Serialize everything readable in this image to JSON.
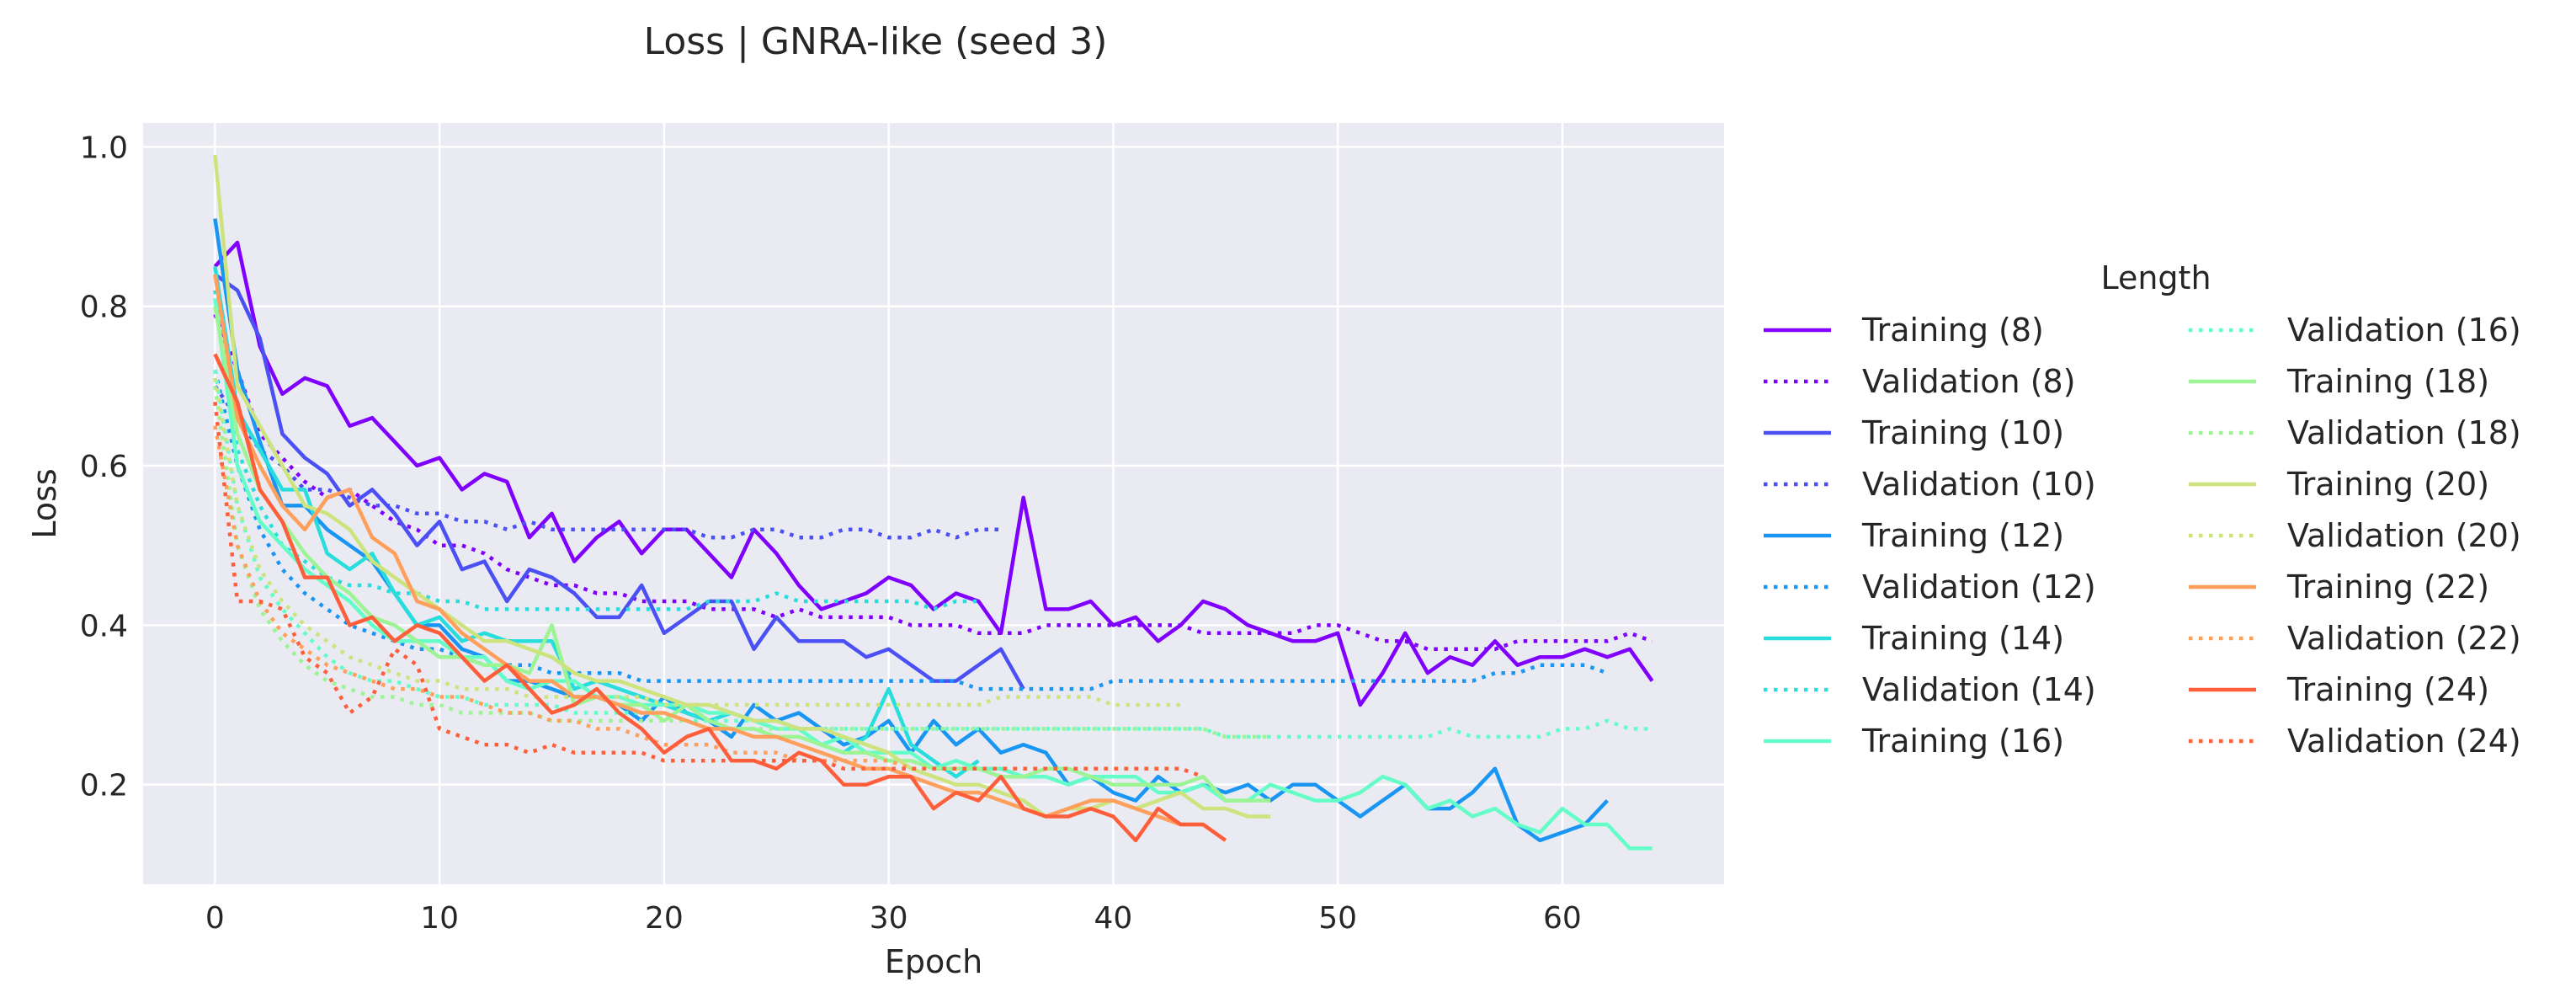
{
  "chart_data": {
    "type": "line",
    "title": "Loss | GNRA-like (seed 3)",
    "xlabel": "Epoch",
    "ylabel": "Loss",
    "xlim": [
      -3.2,
      67.2
    ],
    "ylim": [
      0.075,
      1.03
    ],
    "xticks": [
      0,
      10,
      20,
      30,
      40,
      50,
      60
    ],
    "yticks": [
      0.2,
      0.4,
      0.6,
      0.8,
      1.0
    ],
    "xtick_labels": [
      "0",
      "10",
      "20",
      "30",
      "40",
      "50",
      "60"
    ],
    "ytick_labels": [
      "0.2",
      "0.4",
      "0.6",
      "0.8",
      "1.0"
    ],
    "grid": true,
    "legend": {
      "title": "Length",
      "placement": "right",
      "columns": 2
    },
    "series": [
      {
        "name": "Training (8)",
        "color": "#8000ff",
        "style": "solid",
        "values": [
          0.85,
          0.88,
          0.75,
          0.69,
          0.71,
          0.7,
          0.65,
          0.66,
          0.63,
          0.6,
          0.61,
          0.57,
          0.59,
          0.58,
          0.51,
          0.54,
          0.48,
          0.51,
          0.53,
          0.49,
          0.52,
          0.52,
          0.49,
          0.46,
          0.52,
          0.49,
          0.45,
          0.42,
          0.43,
          0.44,
          0.46,
          0.45,
          0.42,
          0.44,
          0.43,
          0.39,
          0.56,
          0.42,
          0.42,
          0.43,
          0.4,
          0.41,
          0.38,
          0.4,
          0.43,
          0.42,
          0.4,
          0.39,
          0.38,
          0.38,
          0.39,
          0.3,
          0.34,
          0.39,
          0.34,
          0.36,
          0.35,
          0.38,
          0.35,
          0.36,
          0.36,
          0.37,
          0.36,
          0.37,
          0.33
        ]
      },
      {
        "name": "Validation (8)",
        "color": "#8000ff",
        "style": "dotted",
        "values": [
          0.79,
          0.72,
          0.64,
          0.61,
          0.58,
          0.56,
          0.57,
          0.55,
          0.53,
          0.52,
          0.5,
          0.5,
          0.49,
          0.47,
          0.46,
          0.45,
          0.45,
          0.44,
          0.44,
          0.43,
          0.43,
          0.43,
          0.42,
          0.42,
          0.42,
          0.41,
          0.42,
          0.41,
          0.41,
          0.41,
          0.41,
          0.4,
          0.4,
          0.4,
          0.39,
          0.39,
          0.39,
          0.4,
          0.4,
          0.4,
          0.4,
          0.4,
          0.4,
          0.4,
          0.39,
          0.39,
          0.39,
          0.39,
          0.39,
          0.4,
          0.4,
          0.39,
          0.38,
          0.38,
          0.37,
          0.37,
          0.37,
          0.37,
          0.38,
          0.38,
          0.38,
          0.38,
          0.38,
          0.39,
          0.38
        ]
      },
      {
        "name": "Training (10)",
        "color": "#4b50f5",
        "style": "solid",
        "values": [
          0.84,
          0.82,
          0.76,
          0.64,
          0.61,
          0.59,
          0.55,
          0.57,
          0.54,
          0.5,
          0.53,
          0.47,
          0.48,
          0.43,
          0.47,
          0.46,
          0.44,
          0.41,
          0.41,
          0.45,
          0.39,
          0.41,
          0.43,
          0.43,
          0.37,
          0.41,
          0.38,
          0.38,
          0.38,
          0.36,
          0.37,
          0.35,
          0.33,
          0.33,
          0.35,
          0.37,
          0.32
        ]
      },
      {
        "name": "Validation (10)",
        "color": "#4b50f5",
        "style": "dotted",
        "values": [
          0.7,
          0.66,
          0.62,
          0.6,
          0.57,
          0.57,
          0.56,
          0.55,
          0.55,
          0.54,
          0.54,
          0.53,
          0.53,
          0.52,
          0.53,
          0.52,
          0.52,
          0.52,
          0.52,
          0.52,
          0.52,
          0.52,
          0.51,
          0.51,
          0.52,
          0.52,
          0.51,
          0.51,
          0.52,
          0.52,
          0.51,
          0.51,
          0.52,
          0.51,
          0.52,
          0.52
        ]
      },
      {
        "name": "Training (12)",
        "color": "#1996f3",
        "style": "solid",
        "values": [
          0.91,
          0.72,
          0.63,
          0.55,
          0.55,
          0.52,
          0.5,
          0.48,
          0.44,
          0.4,
          0.4,
          0.37,
          0.36,
          0.33,
          0.33,
          0.32,
          0.31,
          0.31,
          0.3,
          0.28,
          0.31,
          0.29,
          0.28,
          0.26,
          0.3,
          0.28,
          0.29,
          0.27,
          0.25,
          0.26,
          0.28,
          0.24,
          0.28,
          0.25,
          0.27,
          0.24,
          0.25,
          0.24,
          0.2,
          0.21,
          0.19,
          0.18,
          0.21,
          0.19,
          0.2,
          0.19,
          0.2,
          0.18,
          0.2,
          0.2,
          0.18,
          0.16,
          0.18,
          0.2,
          0.17,
          0.17,
          0.19,
          0.22,
          0.15,
          0.13,
          0.14,
          0.15,
          0.18
        ]
      },
      {
        "name": "Validation (12)",
        "color": "#1996f3",
        "style": "dotted",
        "values": [
          0.72,
          0.6,
          0.52,
          0.47,
          0.44,
          0.42,
          0.4,
          0.39,
          0.38,
          0.37,
          0.37,
          0.36,
          0.35,
          0.35,
          0.35,
          0.34,
          0.34,
          0.34,
          0.34,
          0.33,
          0.33,
          0.33,
          0.33,
          0.33,
          0.33,
          0.33,
          0.33,
          0.33,
          0.33,
          0.33,
          0.33,
          0.33,
          0.33,
          0.33,
          0.32,
          0.32,
          0.32,
          0.32,
          0.32,
          0.32,
          0.33,
          0.33,
          0.33,
          0.33,
          0.33,
          0.33,
          0.33,
          0.33,
          0.33,
          0.33,
          0.33,
          0.33,
          0.33,
          0.33,
          0.33,
          0.33,
          0.33,
          0.34,
          0.34,
          0.35,
          0.35,
          0.35,
          0.34
        ]
      },
      {
        "name": "Training (14)",
        "color": "#2adddd",
        "style": "solid",
        "values": [
          0.85,
          0.67,
          0.62,
          0.57,
          0.57,
          0.49,
          0.47,
          0.49,
          0.44,
          0.4,
          0.41,
          0.38,
          0.39,
          0.38,
          0.38,
          0.38,
          0.32,
          0.33,
          0.32,
          0.31,
          0.3,
          0.29,
          0.28,
          0.29,
          0.28,
          0.28,
          0.27,
          0.25,
          0.24,
          0.26,
          0.32,
          0.25,
          0.23,
          0.21,
          0.23
        ]
      },
      {
        "name": "Validation (14)",
        "color": "#2adddd",
        "style": "dotted",
        "values": [
          0.82,
          0.62,
          0.55,
          0.5,
          0.48,
          0.46,
          0.45,
          0.45,
          0.44,
          0.44,
          0.43,
          0.43,
          0.42,
          0.42,
          0.42,
          0.42,
          0.42,
          0.42,
          0.42,
          0.42,
          0.42,
          0.42,
          0.43,
          0.43,
          0.43,
          0.44,
          0.43,
          0.43,
          0.43,
          0.43,
          0.43,
          0.43,
          0.42,
          0.43,
          0.43
        ]
      },
      {
        "name": "Training (16)",
        "color": "#64fdc7",
        "style": "solid",
        "values": [
          0.81,
          0.6,
          0.53,
          0.5,
          0.47,
          0.45,
          0.43,
          0.4,
          0.38,
          0.38,
          0.38,
          0.36,
          0.36,
          0.33,
          0.32,
          0.33,
          0.33,
          0.31,
          0.31,
          0.3,
          0.3,
          0.3,
          0.29,
          0.29,
          0.28,
          0.27,
          0.27,
          0.25,
          0.26,
          0.24,
          0.24,
          0.24,
          0.22,
          0.23,
          0.22,
          0.22,
          0.21,
          0.21,
          0.2,
          0.21,
          0.21,
          0.21,
          0.19,
          0.19,
          0.2,
          0.18,
          0.18,
          0.2,
          0.19,
          0.18,
          0.18,
          0.19,
          0.21,
          0.2,
          0.17,
          0.18,
          0.16,
          0.17,
          0.15,
          0.14,
          0.17,
          0.15,
          0.15,
          0.12,
          0.12
        ]
      },
      {
        "name": "Validation (16)",
        "color": "#64fdc7",
        "style": "dotted",
        "values": [
          0.72,
          0.55,
          0.46,
          0.42,
          0.39,
          0.36,
          0.34,
          0.33,
          0.33,
          0.32,
          0.31,
          0.31,
          0.3,
          0.3,
          0.3,
          0.3,
          0.29,
          0.29,
          0.29,
          0.29,
          0.29,
          0.28,
          0.28,
          0.28,
          0.28,
          0.28,
          0.27,
          0.27,
          0.27,
          0.27,
          0.27,
          0.27,
          0.27,
          0.27,
          0.27,
          0.27,
          0.27,
          0.27,
          0.27,
          0.27,
          0.27,
          0.27,
          0.27,
          0.27,
          0.27,
          0.26,
          0.26,
          0.26,
          0.26,
          0.26,
          0.26,
          0.26,
          0.26,
          0.26,
          0.26,
          0.27,
          0.26,
          0.26,
          0.26,
          0.26,
          0.27,
          0.27,
          0.28,
          0.27,
          0.27
        ]
      },
      {
        "name": "Training (18)",
        "color": "#9cf495",
        "style": "solid",
        "values": [
          0.8,
          0.64,
          0.57,
          0.53,
          0.49,
          0.46,
          0.44,
          0.41,
          0.4,
          0.38,
          0.36,
          0.36,
          0.35,
          0.35,
          0.34,
          0.4,
          0.3,
          0.31,
          0.3,
          0.3,
          0.28,
          0.3,
          0.28,
          0.27,
          0.27,
          0.26,
          0.26,
          0.25,
          0.24,
          0.24,
          0.23,
          0.23,
          0.22,
          0.22,
          0.22,
          0.21,
          0.21,
          0.22,
          0.22,
          0.21,
          0.2,
          0.2,
          0.2,
          0.2,
          0.21,
          0.18,
          0.18,
          0.18
        ]
      },
      {
        "name": "Validation (18)",
        "color": "#9cf495",
        "style": "dotted",
        "values": [
          0.7,
          0.5,
          0.42,
          0.38,
          0.35,
          0.33,
          0.32,
          0.31,
          0.31,
          0.3,
          0.3,
          0.29,
          0.29,
          0.29,
          0.29,
          0.28,
          0.28,
          0.28,
          0.28,
          0.28,
          0.28,
          0.28,
          0.27,
          0.27,
          0.27,
          0.27,
          0.27,
          0.27,
          0.27,
          0.27,
          0.27,
          0.27,
          0.27,
          0.27,
          0.27,
          0.27,
          0.27,
          0.27,
          0.27,
          0.27,
          0.27,
          0.27,
          0.27,
          0.27,
          0.27,
          0.26,
          0.26,
          0.26
        ]
      },
      {
        "name": "Training (20)",
        "color": "#cde37e",
        "style": "solid",
        "values": [
          0.99,
          0.7,
          0.65,
          0.6,
          0.55,
          0.54,
          0.52,
          0.48,
          0.46,
          0.44,
          0.42,
          0.4,
          0.38,
          0.38,
          0.37,
          0.36,
          0.34,
          0.33,
          0.33,
          0.32,
          0.31,
          0.3,
          0.3,
          0.29,
          0.28,
          0.28,
          0.27,
          0.27,
          0.26,
          0.25,
          0.24,
          0.22,
          0.21,
          0.2,
          0.2,
          0.19,
          0.18,
          0.16,
          0.17,
          0.17,
          0.18,
          0.17,
          0.18,
          0.19,
          0.17,
          0.17,
          0.16,
          0.16
        ]
      },
      {
        "name": "Validation (20)",
        "color": "#cde37e",
        "style": "dotted",
        "values": [
          0.71,
          0.55,
          0.47,
          0.43,
          0.4,
          0.38,
          0.36,
          0.35,
          0.34,
          0.33,
          0.33,
          0.32,
          0.32,
          0.32,
          0.31,
          0.31,
          0.31,
          0.31,
          0.31,
          0.31,
          0.3,
          0.3,
          0.3,
          0.3,
          0.3,
          0.3,
          0.3,
          0.3,
          0.3,
          0.3,
          0.3,
          0.3,
          0.3,
          0.3,
          0.3,
          0.31,
          0.31,
          0.31,
          0.31,
          0.31,
          0.3,
          0.3,
          0.3,
          0.3
        ]
      },
      {
        "name": "Training (22)",
        "color": "#ff9f5c",
        "style": "solid",
        "values": [
          0.84,
          0.66,
          0.6,
          0.55,
          0.52,
          0.56,
          0.57,
          0.51,
          0.49,
          0.43,
          0.42,
          0.39,
          0.37,
          0.35,
          0.33,
          0.33,
          0.31,
          0.31,
          0.3,
          0.29,
          0.29,
          0.28,
          0.27,
          0.27,
          0.26,
          0.26,
          0.25,
          0.24,
          0.23,
          0.22,
          0.22,
          0.21,
          0.2,
          0.19,
          0.19,
          0.18,
          0.17,
          0.16,
          0.17,
          0.18,
          0.18,
          0.17,
          0.16,
          0.15,
          0.15
        ]
      },
      {
        "name": "Validation (22)",
        "color": "#ff9f5c",
        "style": "dotted",
        "values": [
          0.65,
          0.5,
          0.43,
          0.39,
          0.37,
          0.35,
          0.34,
          0.33,
          0.32,
          0.32,
          0.31,
          0.31,
          0.3,
          0.29,
          0.29,
          0.28,
          0.28,
          0.27,
          0.27,
          0.26,
          0.25,
          0.25,
          0.25,
          0.24,
          0.24,
          0.24,
          0.23,
          0.23,
          0.23,
          0.23,
          0.23,
          0.22,
          0.22,
          0.22,
          0.22,
          0.22,
          0.22,
          0.22,
          0.22,
          0.22,
          0.22,
          0.22,
          0.22,
          0.22
        ]
      },
      {
        "name": "Training (24)",
        "color": "#ff5e3a",
        "style": "solid",
        "values": [
          0.74,
          0.68,
          0.57,
          0.53,
          0.46,
          0.46,
          0.4,
          0.41,
          0.38,
          0.4,
          0.39,
          0.36,
          0.33,
          0.35,
          0.32,
          0.29,
          0.3,
          0.32,
          0.29,
          0.27,
          0.24,
          0.26,
          0.27,
          0.23,
          0.23,
          0.22,
          0.24,
          0.23,
          0.2,
          0.2,
          0.21,
          0.21,
          0.17,
          0.19,
          0.18,
          0.21,
          0.17,
          0.16,
          0.16,
          0.17,
          0.16,
          0.13,
          0.17,
          0.15,
          0.15,
          0.13
        ]
      },
      {
        "name": "Validation (24)",
        "color": "#ff5e3a",
        "style": "dotted",
        "values": [
          0.68,
          0.43,
          0.43,
          0.42,
          0.36,
          0.34,
          0.29,
          0.31,
          0.37,
          0.35,
          0.27,
          0.26,
          0.25,
          0.25,
          0.24,
          0.25,
          0.24,
          0.24,
          0.24,
          0.24,
          0.23,
          0.23,
          0.23,
          0.23,
          0.23,
          0.23,
          0.23,
          0.23,
          0.22,
          0.22,
          0.22,
          0.22,
          0.22,
          0.22,
          0.22,
          0.22,
          0.22,
          0.22,
          0.22,
          0.22,
          0.22,
          0.22,
          0.22,
          0.22,
          0.21
        ]
      }
    ]
  }
}
